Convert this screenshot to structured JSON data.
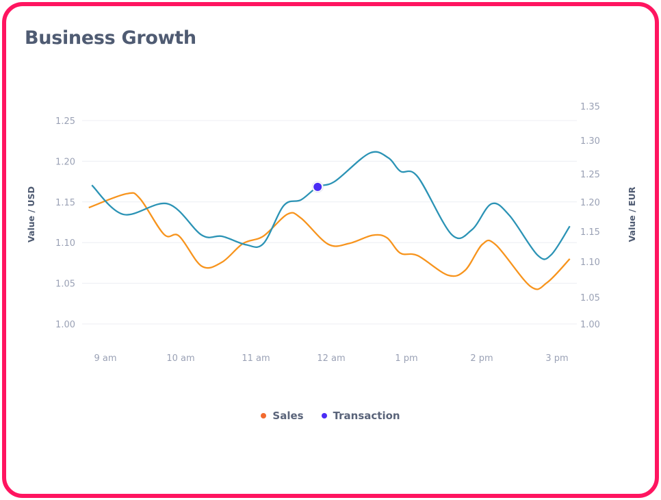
{
  "title": "Business Growth",
  "chart_data": {
    "type": "line",
    "title": "Business Growth",
    "x_ticks": [
      "9 am",
      "10 am",
      "11 am",
      "12 am",
      "1 pm",
      "2 pm",
      "3 pm"
    ],
    "x_tick_values": [
      9,
      10,
      11,
      12,
      13,
      14,
      15
    ],
    "highlighted_x_tick": "12 am",
    "y_left": {
      "label": "Value / USD",
      "ticks": [
        "1.00",
        "1.05",
        "1.10",
        "1.15",
        "1.20",
        "1.25"
      ],
      "range": [
        1.0,
        1.25
      ]
    },
    "y_right": {
      "label": "Value / EUR",
      "ticks": [
        "1.00",
        "1.05",
        "1.10",
        "1.15",
        "1.20",
        "1.25",
        "1.30",
        "1.35"
      ],
      "range": [
        1.0,
        1.35
      ]
    },
    "grid": true,
    "legend_position": "bottom",
    "series": [
      {
        "name": "Sales",
        "axis": "left",
        "color": "#f7941d",
        "legend_color": "#f26a2e",
        "x": [
          8.78,
          9.28,
          9.46,
          9.78,
          9.98,
          10.28,
          10.55,
          10.83,
          11.1,
          11.42,
          11.6,
          11.96,
          12.24,
          12.55,
          12.74,
          12.92,
          13.15,
          13.55,
          13.78,
          14.01,
          14.19,
          14.65,
          14.87,
          15.17
        ],
        "y": [
          1.143,
          1.16,
          1.154,
          1.11,
          1.108,
          1.071,
          1.076,
          1.099,
          1.108,
          1.135,
          1.13,
          1.098,
          1.099,
          1.109,
          1.106,
          1.087,
          1.084,
          1.06,
          1.066,
          1.098,
          1.097,
          1.046,
          1.051,
          1.08
        ]
      },
      {
        "name": "Transaction",
        "axis": "right",
        "color": "#2b93b5",
        "legend_color": "#4a2cf5",
        "x": [
          8.82,
          9.24,
          9.83,
          10.28,
          10.55,
          10.87,
          11.1,
          11.37,
          11.6,
          11.82,
          12.05,
          12.51,
          12.76,
          12.92,
          13.15,
          13.6,
          13.87,
          14.13,
          14.37,
          14.74,
          14.92,
          15.17
        ],
        "y": [
          1.23,
          1.179,
          1.197,
          1.144,
          1.142,
          1.128,
          1.13,
          1.194,
          1.204,
          1.227,
          1.237,
          1.281,
          1.274,
          1.254,
          1.245,
          1.145,
          1.153,
          1.197,
          1.177,
          1.111,
          1.111,
          1.159
        ]
      }
    ],
    "highlight_point": {
      "series": "Transaction",
      "x": 11.82,
      "y": 1.227,
      "color": "#4a2cf5"
    }
  }
}
